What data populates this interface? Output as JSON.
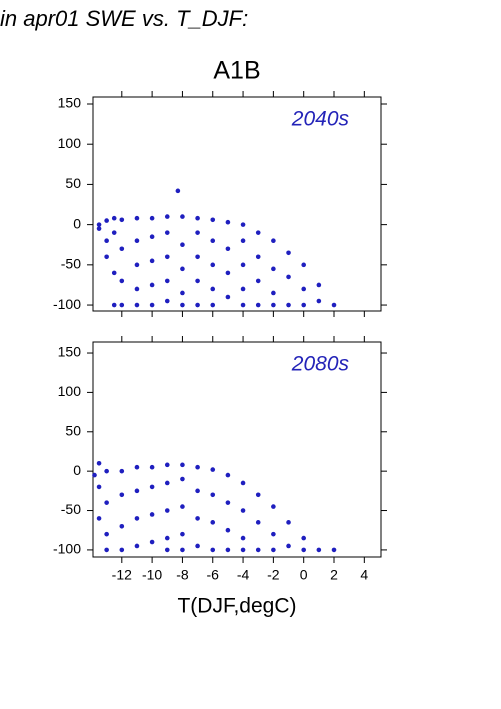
{
  "title": "in apr01 SWE vs. T_DJF:",
  "subtitle": "A1B",
  "x_label": "T(DJF,degC)",
  "chart_data": [
    {
      "type": "scatter",
      "annotation": "2040s",
      "color": "#1f1fbf",
      "xlim": [
        -13.9,
        5.1
      ],
      "ylim": [
        -107.4,
        158.7
      ],
      "xticks": [
        -12,
        -10,
        -8,
        -6,
        -4,
        -2,
        0,
        2,
        4
      ],
      "yticks": [
        -100,
        -50,
        0,
        50,
        100,
        150
      ],
      "x": [
        -13.5,
        -13.5,
        -13,
        -13,
        -13,
        -12.5,
        -12.5,
        -12.5,
        -12.5,
        -12,
        -12,
        -12,
        -12,
        -11,
        -11,
        -11,
        -11,
        -11,
        -10,
        -10,
        -10,
        -10,
        -10,
        -9,
        -9,
        -9,
        -9,
        -9,
        -8.3,
        -8,
        -8,
        -8,
        -8,
        -8,
        -7,
        -7,
        -7,
        -7,
        -7,
        -6,
        -6,
        -6,
        -6,
        -6,
        -5,
        -5,
        -5,
        -5,
        -4,
        -4,
        -4,
        -4,
        -4,
        -3,
        -3,
        -3,
        -3,
        -2,
        -2,
        -2,
        -2,
        -1,
        -1,
        -1,
        0,
        0,
        0,
        1,
        1,
        2
      ],
      "values": [
        0,
        -5,
        5,
        -20,
        -40,
        8,
        -10,
        -60,
        -100,
        6,
        -30,
        -70,
        -100,
        8,
        -20,
        -50,
        -80,
        -100,
        8,
        -15,
        -45,
        -75,
        -100,
        10,
        -10,
        -40,
        -70,
        -95,
        42,
        10,
        -25,
        -55,
        -85,
        -100,
        8,
        -10,
        -40,
        -70,
        -100,
        6,
        -20,
        -50,
        -80,
        -100,
        3,
        -30,
        -60,
        -90,
        0,
        -20,
        -50,
        -80,
        -100,
        -10,
        -40,
        -70,
        -100,
        -20,
        -55,
        -85,
        -100,
        -35,
        -65,
        -100,
        -50,
        -80,
        -100,
        -75,
        -95,
        -100
      ]
    },
    {
      "type": "scatter",
      "annotation": "2080s",
      "color": "#1f1fbf",
      "xlim": [
        -13.9,
        5.1
      ],
      "ylim": [
        -109,
        164
      ],
      "xticks": [
        -12,
        -10,
        -8,
        -6,
        -4,
        -2,
        0,
        2,
        4
      ],
      "yticks": [
        -100,
        -50,
        0,
        50,
        100,
        150
      ],
      "x": [
        -13.8,
        -13.5,
        -13.5,
        -13.5,
        -13,
        -13,
        -13,
        -13,
        -12,
        -12,
        -12,
        -12,
        -11,
        -11,
        -11,
        -11,
        -10,
        -10,
        -10,
        -10,
        -9,
        -9,
        -9,
        -9,
        -9,
        -8,
        -8,
        -8,
        -8,
        -8,
        -7,
        -7,
        -7,
        -7,
        -6,
        -6,
        -6,
        -6,
        -5,
        -5,
        -5,
        -5,
        -4,
        -4,
        -4,
        -4,
        -3,
        -3,
        -3,
        -2,
        -2,
        -2,
        -1,
        -1,
        0,
        0,
        1,
        2
      ],
      "values": [
        -5,
        10,
        -20,
        -60,
        0,
        -40,
        -80,
        -100,
        0,
        -30,
        -70,
        -100,
        5,
        -25,
        -60,
        -95,
        5,
        -20,
        -55,
        -90,
        8,
        -15,
        -50,
        -85,
        -100,
        8,
        -10,
        -45,
        -80,
        -100,
        5,
        -25,
        -60,
        -95,
        2,
        -30,
        -65,
        -100,
        -5,
        -40,
        -75,
        -100,
        -15,
        -50,
        -85,
        -100,
        -30,
        -65,
        -100,
        -45,
        -80,
        -100,
        -65,
        -95,
        -85,
        -100,
        -100,
        -100
      ]
    }
  ]
}
